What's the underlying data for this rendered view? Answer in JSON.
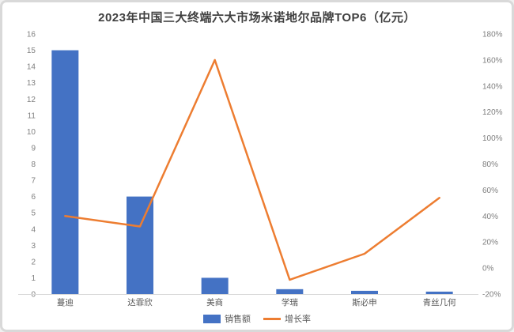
{
  "chart_data": {
    "type": "bar",
    "combo": "bar+line",
    "title": "2023年中国三大终端六大市场米诺地尔品牌TOP6（亿元）",
    "categories": [
      "蔓迪",
      "达霏欣",
      "美商",
      "学瑞",
      "斯必申",
      "青丝几何"
    ],
    "series": [
      {
        "name": "销售额",
        "type": "bar",
        "axis": "left",
        "values": [
          15,
          6,
          1,
          0.3,
          0.2,
          0.15
        ],
        "color": "#4472C4"
      },
      {
        "name": "增长率",
        "type": "line",
        "axis": "right",
        "values": [
          40,
          32,
          160,
          -9,
          11,
          54
        ],
        "unit": "%",
        "color": "#ED7D31"
      }
    ],
    "left_axis": {
      "min": 0,
      "max": 16,
      "step": 1,
      "labels": [
        "0",
        "1",
        "2",
        "3",
        "4",
        "5",
        "6",
        "7",
        "8",
        "9",
        "10",
        "11",
        "12",
        "13",
        "14",
        "15",
        "16"
      ]
    },
    "right_axis": {
      "min": -20,
      "max": 180,
      "step": 20,
      "format": "percent",
      "labels": [
        "-20%",
        "0%",
        "20%",
        "40%",
        "60%",
        "80%",
        "100%",
        "120%",
        "140%",
        "160%",
        "180%"
      ]
    },
    "grid": false,
    "legend_position": "bottom",
    "xlabel": "",
    "ylabel": ""
  },
  "colors": {
    "bar": "#4472C4",
    "line": "#ED7D31",
    "tick_text": "#7f7f7f",
    "category_text": "#595959",
    "axis_line": "#d9d9d9",
    "title_text": "#3f3f3f"
  }
}
